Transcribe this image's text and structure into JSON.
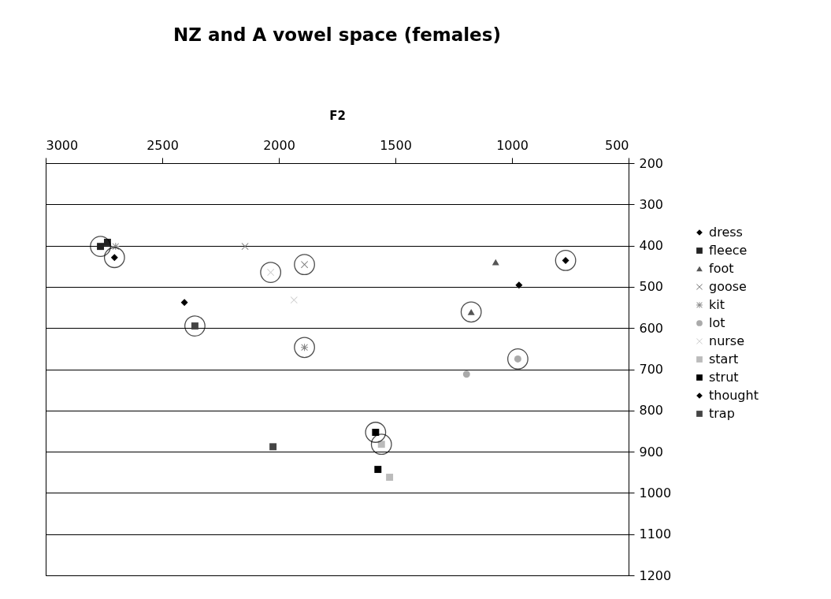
{
  "chart_data": {
    "type": "scatter",
    "title": "NZ and A vowel space (females)",
    "xlabel": "F2",
    "xlim": [
      3000,
      500
    ],
    "xticks": [
      3000,
      2500,
      2000,
      1500,
      1000,
      500
    ],
    "ylim": [
      1200,
      200
    ],
    "yticks": [
      200,
      300,
      400,
      500,
      600,
      700,
      800,
      900,
      1000,
      1100,
      1200
    ],
    "grid": "y",
    "legend": "right",
    "series": [
      {
        "name": "dress",
        "color": "#000000",
        "marker": "diamond",
        "x": [
          2705,
          2405
        ],
        "values": [
          429,
          538
        ]
      },
      {
        "name": "fleece",
        "color": "#222222",
        "marker": "square",
        "x": [
          2765,
          2735
        ],
        "values": [
          402,
          392
        ]
      },
      {
        "name": "foot",
        "color": "#555555",
        "marker": "triangle",
        "x": [
          1175,
          1070
        ],
        "values": [
          561,
          440
        ]
      },
      {
        "name": "goose",
        "color": "#777777",
        "marker": "cross",
        "x": [
          1890,
          2145
        ],
        "values": [
          446,
          402
        ]
      },
      {
        "name": "kit",
        "color": "#888888",
        "marker": "star",
        "x": [
          1890,
          2700
        ],
        "values": [
          647,
          402
        ]
      },
      {
        "name": "lot",
        "color": "#aaaaaa",
        "marker": "circle",
        "x": [
          975,
          1195
        ],
        "values": [
          675,
          712
        ]
      },
      {
        "name": "nurse",
        "color": "#cccccc",
        "marker": "cross",
        "x": [
          2035,
          1935
        ],
        "values": [
          465,
          532
        ]
      },
      {
        "name": "start",
        "color": "#bbbbbb",
        "marker": "square",
        "x": [
          1560,
          1525
        ],
        "values": [
          882,
          962
        ]
      },
      {
        "name": "strut",
        "color": "#000000",
        "marker": "square",
        "x": [
          1585,
          1575
        ],
        "values": [
          853,
          943
        ]
      },
      {
        "name": "thought",
        "color": "#000000",
        "marker": "diamond",
        "x": [
          770,
          970
        ],
        "values": [
          436,
          496
        ]
      },
      {
        "name": "trap",
        "color": "#444444",
        "marker": "square",
        "x": [
          2360,
          2025
        ],
        "values": [
          595,
          888
        ]
      },
      {
        "color": "#000000",
        "marker": "circle",
        "x": [
          2765,
          2705,
          1890,
          2035,
          1890,
          2360,
          1175,
          770,
          975,
          1585,
          1560
        ],
        "values": [
          402,
          429,
          446,
          465,
          647,
          595,
          561,
          436,
          675,
          853,
          882
        ]
      }
    ]
  }
}
